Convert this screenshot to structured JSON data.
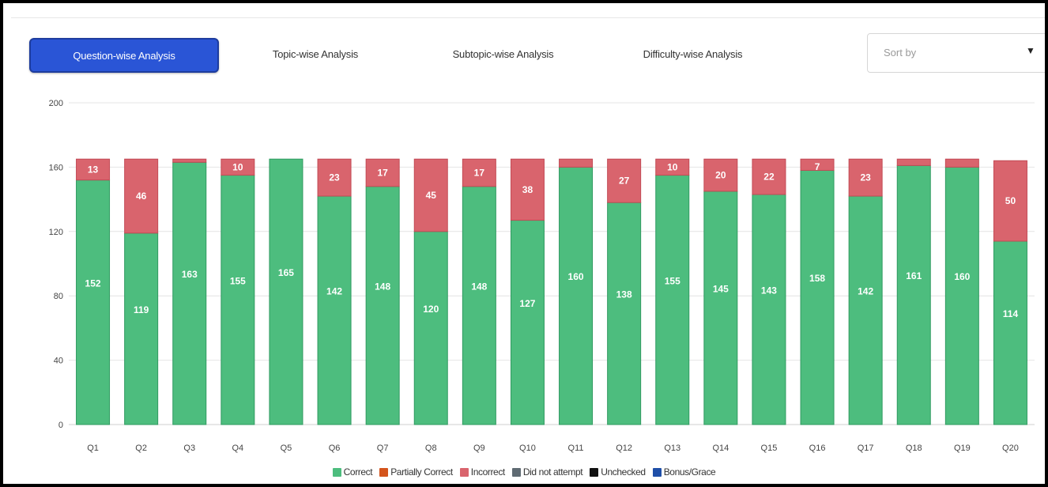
{
  "tabs": [
    {
      "label": "Question-wise Analysis",
      "active": true
    },
    {
      "label": "Topic-wise Analysis",
      "active": false
    },
    {
      "label": "Subtopic-wise Analysis",
      "active": false
    },
    {
      "label": "Difficulty-wise Analysis",
      "active": false
    }
  ],
  "sort": {
    "placeholder": "Sort by",
    "caret_icon": "caret-down-icon"
  },
  "colors": {
    "active_tab": "#2a55d6",
    "correct": "#4dbd7e",
    "partially_correct": "#d4541c",
    "incorrect": "#d9646d",
    "did_not_attempt": "#5f6b73",
    "unchecked": "#111111",
    "bonus_grace": "#1f4fa8"
  },
  "chart_data": {
    "type": "bar",
    "stacked": true,
    "categories": [
      "Q1",
      "Q2",
      "Q3",
      "Q4",
      "Q5",
      "Q6",
      "Q7",
      "Q8",
      "Q9",
      "Q10",
      "Q11",
      "Q12",
      "Q13",
      "Q14",
      "Q15",
      "Q16",
      "Q17",
      "Q18",
      "Q19",
      "Q20"
    ],
    "series": [
      {
        "name": "Correct",
        "values": [
          152,
          119,
          163,
          155,
          165,
          142,
          148,
          120,
          148,
          127,
          160,
          138,
          155,
          145,
          143,
          158,
          142,
          161,
          160,
          114
        ]
      },
      {
        "name": "Incorrect",
        "values": [
          13,
          46,
          2,
          10,
          0,
          23,
          17,
          45,
          17,
          38,
          5,
          27,
          10,
          20,
          22,
          7,
          23,
          4,
          5,
          50
        ]
      }
    ],
    "data_labels": {
      "Correct": [
        "152",
        "119",
        "163",
        "155",
        "165",
        "142",
        "148",
        "120",
        "148",
        "127",
        "160",
        "138",
        "155",
        "145",
        "143",
        "158",
        "142",
        "161",
        "160",
        "114"
      ],
      "Incorrect": [
        "13",
        "46",
        "",
        "10",
        "",
        "23",
        "17",
        "45",
        "17",
        "38",
        "",
        "27",
        "10",
        "20",
        "22",
        "7",
        "23",
        "",
        "",
        "50"
      ]
    },
    "ylim": [
      0,
      200
    ],
    "yticks": [
      0,
      40,
      80,
      120,
      160,
      200
    ],
    "grid": true,
    "legend_position": "bottom",
    "legend": [
      "Correct",
      "Partially Correct",
      "Incorrect",
      "Did not attempt",
      "Unchecked",
      "Bonus/Grace"
    ]
  }
}
